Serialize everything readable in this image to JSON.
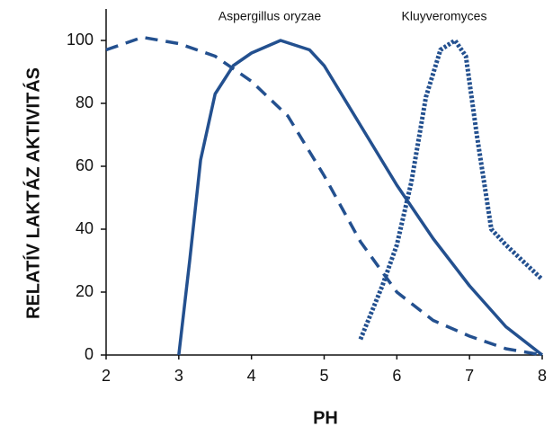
{
  "chart_data": {
    "type": "line",
    "x_label": "PH",
    "y_label": "RELATÍV LAKTÁZ AKTIVITÁS",
    "xlim": [
      2,
      8
    ],
    "xticks": [
      2,
      3,
      4,
      5,
      6,
      7,
      8
    ],
    "ylim": [
      0,
      100
    ],
    "yticks": [
      0,
      20,
      40,
      60,
      80,
      100
    ],
    "grid": false,
    "series": [
      {
        "color": "#23508f",
        "style": "dashed",
        "x": [
          2,
          2.5,
          3,
          3.5,
          4,
          4.5,
          5,
          5.5,
          6,
          6.5,
          7,
          7.5,
          8
        ],
        "values": [
          97,
          101,
          99,
          95,
          87,
          76,
          57,
          36,
          20,
          11,
          6,
          2,
          0
        ]
      },
      {
        "name": "Aspergillus oryzae",
        "color": "#23508f",
        "style": "solid",
        "x": [
          3,
          3.15,
          3.3,
          3.5,
          3.75,
          4,
          4.4,
          4.8,
          5,
          5.5,
          6,
          6.5,
          7,
          7.5,
          8
        ],
        "values": [
          0,
          30,
          62,
          83,
          92,
          96,
          100,
          97,
          92,
          73,
          54,
          37,
          22,
          9,
          0
        ]
      },
      {
        "name": "Kluyveromyces",
        "color": "#23508f",
        "style": "dotted",
        "x": [
          5.5,
          5.8,
          6,
          6.2,
          6.4,
          6.6,
          6.8,
          6.95,
          7.1,
          7.3,
          7.5,
          8
        ],
        "values": [
          5,
          22,
          35,
          55,
          82,
          97,
          100,
          95,
          70,
          40,
          35,
          24
        ]
      }
    ]
  }
}
